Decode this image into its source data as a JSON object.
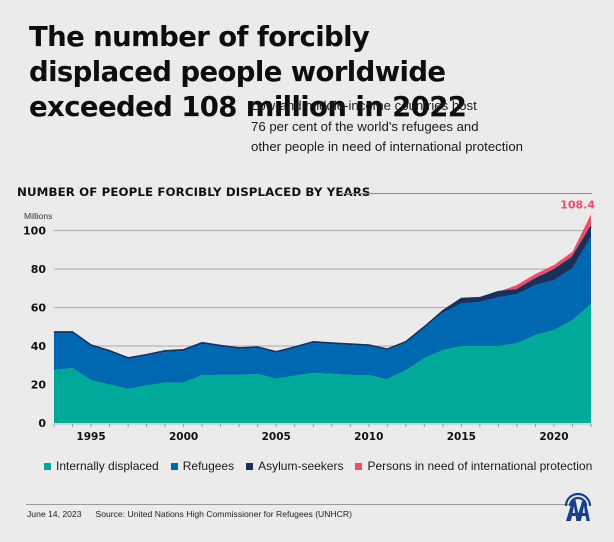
{
  "header": {
    "title": "The number of forcibly displaced people worldwide exceeded 108 million in 2022",
    "subtitle_lines": [
      "Low-and middle-income countries host",
      "76 per cent of the world's refugees and",
      "other people in need of international protection"
    ]
  },
  "chart_heading": "NUMBER OF PEOPLE FORCIBLY DISPLACED BY YEARS",
  "chart_data": {
    "type": "area",
    "stacked": true,
    "title": "NUMBER OF PEOPLE FORCIBLY DISPLACED BY YEARS",
    "xlabel": "",
    "ylabel": "Millions",
    "ylim": [
      0,
      100
    ],
    "xlim": [
      1993,
      2022
    ],
    "yticks": [
      0,
      20,
      40,
      60,
      80,
      100
    ],
    "xticks": [
      1995,
      2000,
      2005,
      2010,
      2015,
      2020
    ],
    "grid": true,
    "legend_position": "bottom",
    "x": [
      1993,
      1994,
      1995,
      1996,
      1997,
      1998,
      1999,
      2000,
      2001,
      2002,
      2003,
      2004,
      2005,
      2006,
      2007,
      2008,
      2009,
      2010,
      2011,
      2012,
      2013,
      2014,
      2015,
      2016,
      2017,
      2018,
      2019,
      2020,
      2021,
      2022
    ],
    "series": [
      {
        "name": "Internally displaced",
        "color": "#00a99a",
        "values": [
          27.5,
          28.5,
          22.3,
          20,
          17.7,
          19.5,
          21,
          21,
          24.9,
          25,
          25,
          25.5,
          23,
          24.5,
          26,
          25.5,
          25,
          24.9,
          22.7,
          27.5,
          33.6,
          37.9,
          40,
          40,
          40,
          41.4,
          45.7,
          48.3,
          53.5,
          61.8
        ]
      },
      {
        "name": "Refugees",
        "color": "#0067b1",
        "values": [
          19.3,
          18.3,
          17.7,
          17,
          15.6,
          15.5,
          15.9,
          16.4,
          16.3,
          14.7,
          13.5,
          13.5,
          13.5,
          14.5,
          15.7,
          15.5,
          15.5,
          15.1,
          15.2,
          14.2,
          15.9,
          19.3,
          22.2,
          22.9,
          25.3,
          25.5,
          26,
          26,
          26.9,
          35
        ]
      },
      {
        "name": "Asylum-seekers",
        "color": "#1b2f5a",
        "values": [
          0.5,
          0.5,
          0.5,
          0.5,
          0.5,
          0.5,
          0.6,
          0.6,
          0.5,
          0.5,
          0.5,
          0.5,
          0.5,
          0.5,
          0.5,
          0.5,
          0.5,
          0.5,
          0.5,
          0.5,
          0.5,
          1.1,
          2.4,
          2.2,
          2.9,
          2.2,
          3.1,
          5.2,
          5.7,
          5.2
        ]
      },
      {
        "name": "Persons in need of international protection",
        "color": "#e8506a",
        "values": [
          0,
          0,
          0,
          0,
          0,
          0,
          0,
          0,
          0,
          0,
          0,
          0,
          0,
          0,
          0,
          0,
          0,
          0,
          0,
          0,
          0,
          0,
          0,
          0,
          0,
          2.6,
          2.6,
          2.6,
          2.9,
          6.4
        ]
      }
    ],
    "annotations": [
      {
        "x": 2022,
        "label": "108.4",
        "color": "#e8506a"
      }
    ]
  },
  "legend": [
    {
      "label": "Internally displaced",
      "color": "#00a99a"
    },
    {
      "label": "Refugees",
      "color": "#0067b1"
    },
    {
      "label": "Asylum-seekers",
      "color": "#1b2f5a"
    },
    {
      "label": "Persons in need of international protection",
      "color": "#e8506a"
    }
  ],
  "footer": {
    "date": "June 14, 2023",
    "source": "Source:  United Nations High Commissioner for Refugees (UNHCR)"
  },
  "logo": {
    "icon": "aa-agency-logo",
    "color": "#17408b"
  }
}
